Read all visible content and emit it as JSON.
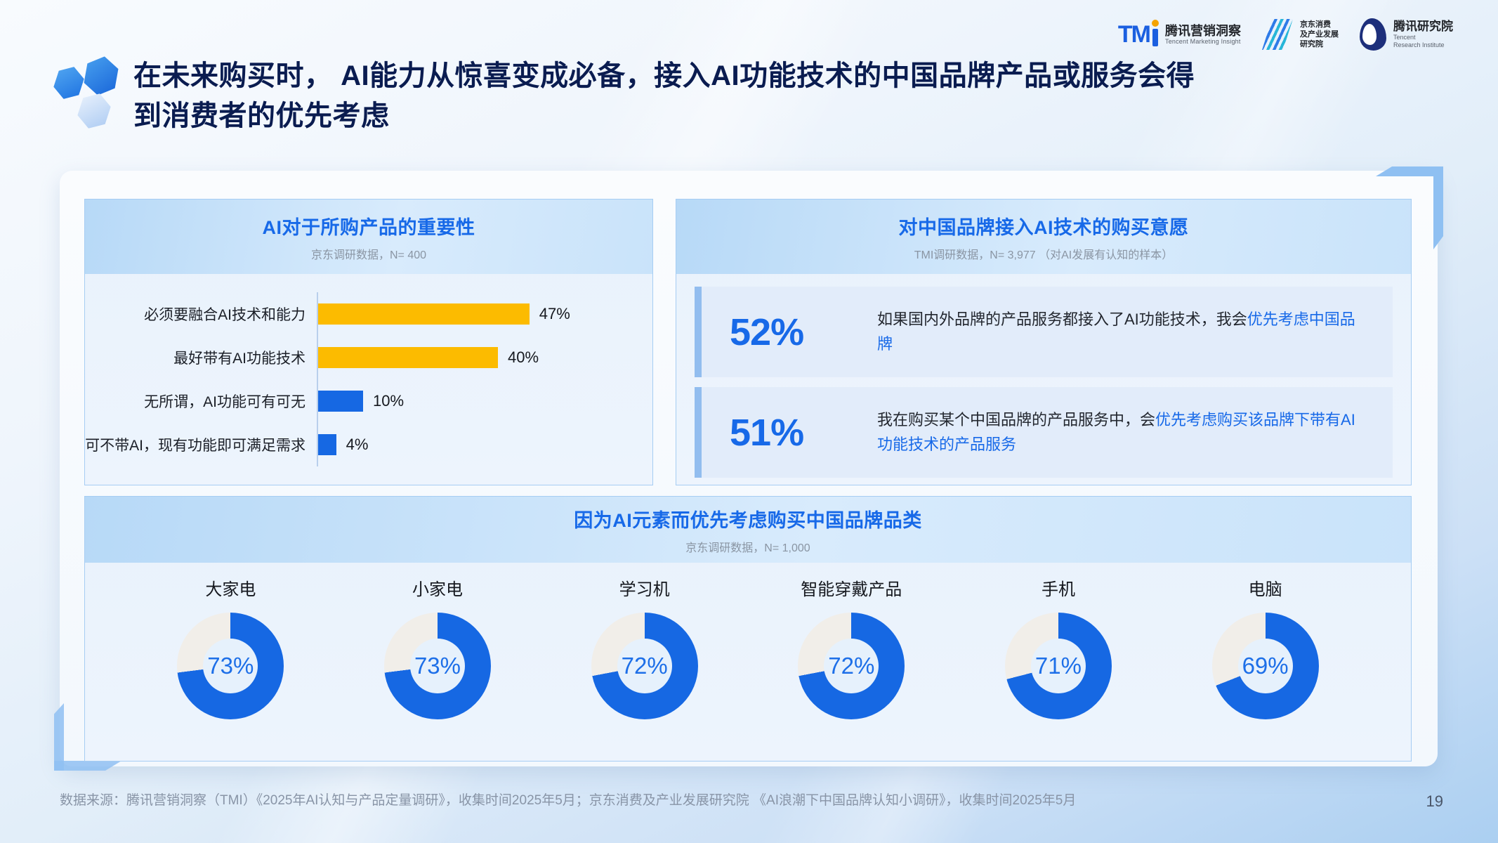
{
  "page": {
    "number": "19",
    "footer": "数据来源：腾讯营销洞察（TMI）《2025年AI认知与产品定量调研》，收集时间2025年5月；京东消费及产业发展研究院 《AI浪潮下中国品牌认知小调研》，收集时间2025年5月"
  },
  "header": {
    "title_line1": "在未来购买时， AI能力从惊喜变成必备，接入AI功能技术的中国品牌产品或服务会得",
    "title_line2": "到消费者的优先考虑",
    "logos": {
      "tmi": {
        "mark": "TM",
        "cn": "腾讯营销洞察",
        "en": "Tencent Marketing Insight"
      },
      "jd": {
        "line1": "京东消费",
        "line2": "及产业发展",
        "line3": "研究院"
      },
      "tri": {
        "cn": "腾讯研究院",
        "en_line1": "Tencent",
        "en_line2": "Research Institute"
      }
    }
  },
  "panels": {
    "importance": {
      "title": "AI对于所购产品的重要性",
      "subtitle": "京东调研数据，N= 400",
      "bars": [
        {
          "label": "必须要融合AI技术和能力",
          "value": 47,
          "display": "47%",
          "color": "#FCBB00"
        },
        {
          "label": "最好带有AI功能技术",
          "value": 40,
          "display": "40%",
          "color": "#FCBB00"
        },
        {
          "label": "无所谓，AI功能可有可无",
          "value": 10,
          "display": "10%",
          "color": "#1668E3"
        },
        {
          "label": "可不带AI，现有功能即可满足需求",
          "value": 4,
          "display": "4%",
          "color": "#1668E3"
        }
      ]
    },
    "willingness": {
      "title": "对中国品牌接入AI技术的购买意愿",
      "subtitle": "TMI调研数据，N= 3,977 （对AI发展有认知的样本）",
      "stats": [
        {
          "value": "52%",
          "text_plain": "如果国内外品牌的产品服务都接入了AI功能技术，我会",
          "text_highlight": "优先考虑中国品牌"
        },
        {
          "value": "51%",
          "text_plain": "我在购买某个中国品牌的产品服务中，会",
          "text_highlight": "优先考虑购买该品牌下带有AI功能技术的产品服务"
        }
      ]
    },
    "categories": {
      "title": "因为AI元素而优先考虑购买中国品牌品类",
      "subtitle": "京东调研数据，N= 1,000",
      "donuts": [
        {
          "label": "大家电",
          "value": 73,
          "display": "73%"
        },
        {
          "label": "小家电",
          "value": 73,
          "display": "73%"
        },
        {
          "label": "学习机",
          "value": 72,
          "display": "72%"
        },
        {
          "label": "智能穿戴产品",
          "value": 72,
          "display": "72%"
        },
        {
          "label": "手机",
          "value": 71,
          "display": "71%"
        },
        {
          "label": "电脑",
          "value": 69,
          "display": "69%"
        }
      ]
    }
  },
  "colors": {
    "primary_blue": "#1668E3",
    "title_blue": "#1769E8",
    "accent_yellow": "#FCBB00",
    "donut_rest": "#F1EEE9",
    "title_navy": "#0A1C50",
    "panel_border": "#A6CDF3",
    "stat_card_bg": "#E2ECFA",
    "stat_accent": "#92BDEF"
  },
  "chart_data": [
    {
      "type": "bar",
      "orientation": "horizontal",
      "title": "AI对于所购产品的重要性",
      "subtitle": "京东调研数据，N= 400",
      "categories": [
        "必须要融合AI技术和能力",
        "最好带有AI功能技术",
        "无所谓，AI功能可有可无",
        "可不带AI，现有功能即可满足需求"
      ],
      "values": [
        47,
        40,
        10,
        4
      ],
      "unit": "%",
      "bar_colors": [
        "#FCBB00",
        "#FCBB00",
        "#1668E3",
        "#1668E3"
      ],
      "xlim": [
        0,
        50
      ],
      "grid": false,
      "legend": false
    },
    {
      "type": "table",
      "variant": "stat-callouts",
      "title": "对中国品牌接入AI技术的购买意愿",
      "subtitle": "TMI调研数据，N= 3,977 （对AI发展有认知的样本）",
      "rows": [
        {
          "value": 52,
          "unit": "%",
          "statement": "如果国内外品牌的产品服务都接入了AI功能技术，我会优先考虑中国品牌"
        },
        {
          "value": 51,
          "unit": "%",
          "statement": "我在购买某个中国品牌的产品服务中，会优先考虑购买该品牌下带有AI功能技术的产品服务"
        }
      ]
    },
    {
      "type": "pie",
      "variant": "donut-multiples",
      "title": "因为AI元素而优先考虑购买中国品牌品类",
      "subtitle": "京东调研数据，N= 1,000",
      "categories": [
        "大家电",
        "小家电",
        "学习机",
        "智能穿戴产品",
        "手机",
        "电脑"
      ],
      "values": [
        73,
        73,
        72,
        72,
        71,
        69
      ],
      "unit": "%",
      "fill_color": "#1668E3",
      "rest_color": "#F1EEE9"
    }
  ]
}
